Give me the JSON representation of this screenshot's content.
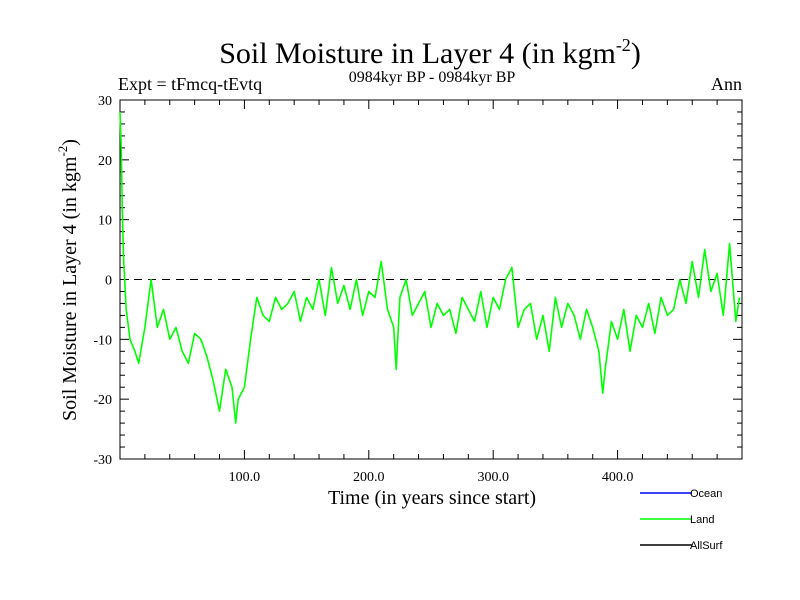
{
  "chart_data": {
    "type": "line",
    "title": "Soil Moisture in Layer 4 (in kgm",
    "title_sup": "-2",
    "title_close": ")",
    "subtitle": "0984kyr BP - 0984kyr BP",
    "left_label": "Expt = tFmcq-tEvtq",
    "right_label": "Ann",
    "xlabel": "Time (in years since start)",
    "ylabel": "Soil Moisture in Layer 4 (in kgm",
    "ylabel_sup": "-2",
    "ylabel_close": ")",
    "xlim": [
      0,
      500
    ],
    "ylim": [
      -30,
      30
    ],
    "x_ticks": [
      100,
      200,
      300,
      400
    ],
    "x_tick_labels": [
      "100.0",
      "200.0",
      "300.0",
      "400.0"
    ],
    "y_ticks": [
      -30,
      -20,
      -10,
      0,
      10,
      20,
      30
    ],
    "y_tick_labels": [
      "-30",
      "-20",
      "-10",
      "0",
      "10",
      "20",
      "30"
    ],
    "reference_line": 0,
    "series": [
      {
        "name": "Ocean",
        "color": "#0000ff",
        "x": [],
        "values": []
      },
      {
        "name": "Land",
        "color": "#00ff00",
        "x": [
          0,
          1,
          2,
          3,
          5,
          8,
          12,
          15,
          20,
          25,
          30,
          35,
          40,
          45,
          50,
          55,
          60,
          65,
          70,
          75,
          78,
          80,
          85,
          90,
          93,
          95,
          100,
          105,
          110,
          115,
          120,
          125,
          130,
          135,
          140,
          145,
          150,
          155,
          160,
          165,
          170,
          175,
          180,
          185,
          190,
          195,
          200,
          205,
          210,
          215,
          220,
          222,
          225,
          230,
          235,
          240,
          245,
          250,
          255,
          260,
          265,
          270,
          275,
          280,
          285,
          290,
          295,
          300,
          305,
          310,
          315,
          320,
          325,
          330,
          335,
          340,
          345,
          350,
          355,
          360,
          365,
          370,
          375,
          380,
          385,
          388,
          390,
          395,
          400,
          405,
          410,
          415,
          420,
          425,
          430,
          435,
          440,
          445,
          450,
          455,
          460,
          465,
          470,
          475,
          480,
          485,
          490,
          495,
          498
        ],
        "values": [
          28,
          22,
          10,
          3,
          -5,
          -10,
          -12,
          -14,
          -8,
          0,
          -8,
          -5,
          -10,
          -8,
          -12,
          -14,
          -9,
          -10,
          -13,
          -17,
          -20,
          -22,
          -15,
          -18,
          -24,
          -20,
          -18,
          -10,
          -3,
          -6,
          -7,
          -3,
          -5,
          -4,
          -2,
          -7,
          -3,
          -5,
          0,
          -6,
          2,
          -4,
          -1,
          -5,
          0,
          -6,
          -2,
          -3,
          3,
          -5,
          -8,
          -15,
          -3,
          0,
          -6,
          -4,
          -2,
          -8,
          -4,
          -6,
          -5,
          -9,
          -3,
          -5,
          -7,
          -2,
          -8,
          -3,
          -5,
          0,
          2,
          -8,
          -5,
          -4,
          -10,
          -6,
          -12,
          -3,
          -8,
          -4,
          -6,
          -10,
          -5,
          -8,
          -12,
          -19,
          -15,
          -7,
          -10,
          -5,
          -12,
          -6,
          -8,
          -4,
          -9,
          -3,
          -6,
          -5,
          0,
          -4,
          3,
          -3,
          5,
          -2,
          1,
          -6,
          6,
          -7,
          -3
        ]
      },
      {
        "name": "AllSurf",
        "color": "#000000",
        "x": [],
        "values": []
      }
    ]
  }
}
